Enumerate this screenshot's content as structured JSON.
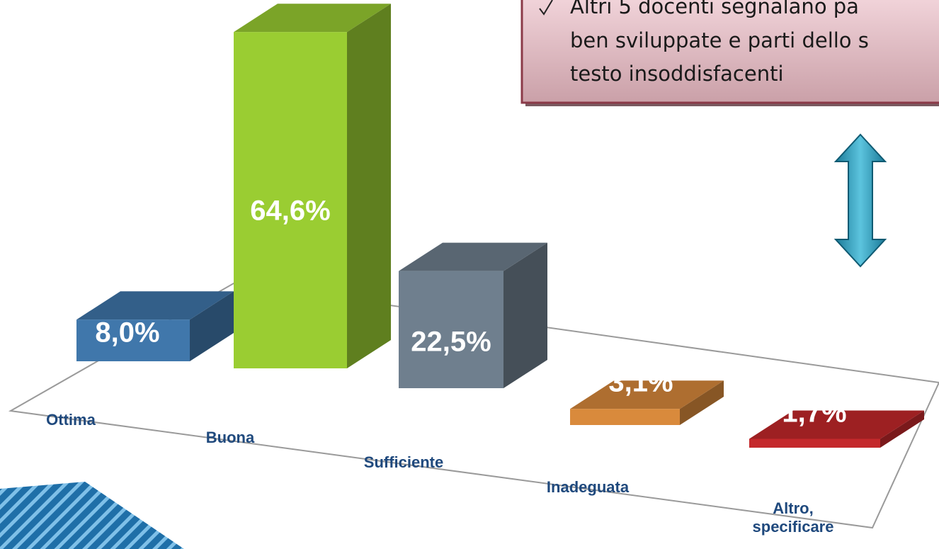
{
  "chart_data": {
    "type": "bar",
    "categories": [
      "Ottima",
      "Buona",
      "Sufficiente",
      "Inadeguata",
      "Altro, specificare"
    ],
    "values": [
      8.0,
      64.6,
      22.5,
      3.1,
      1.7
    ],
    "value_labels": [
      "8,0%",
      "64,6%",
      "22,5%",
      "3,1%",
      "1,7%"
    ],
    "colors": [
      "#4077ab",
      "#9acd32",
      "#6f7f8e",
      "#d98a3c",
      "#c4282b"
    ],
    "annotation": [
      "Altri 5 docenti segnalano pa",
      "ben sviluppate e parti dello s",
      "testo insoddisfacenti"
    ]
  }
}
